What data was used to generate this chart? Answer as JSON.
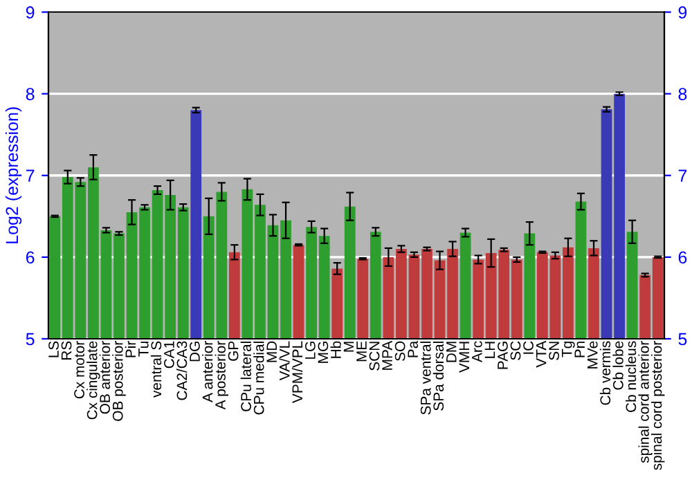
{
  "chart_data": {
    "type": "bar",
    "ylabel": "Log2 (expression)",
    "categories": [
      "LS",
      "RS",
      "Cx motor",
      "Cx cingulate",
      "OB anterior",
      "OB posterior",
      "Pir",
      "Tu",
      "ventral S",
      "CA1",
      "CA2/CA3",
      "DG",
      "A anterior",
      "A posterior",
      "GP",
      "CPu lateral",
      "CPu medial",
      "MD",
      "VA/VL",
      "VPM/VPL",
      "LG",
      "MG",
      "Hb",
      "M",
      "ME",
      "SCN",
      "MPA",
      "SO",
      "Pa",
      "SPa ventral",
      "SPa dorsal",
      "DM",
      "VMH",
      "Arc",
      "LH",
      "PAG",
      "SC",
      "IC",
      "VTA",
      "SN",
      "Tg",
      "Pn",
      "MVe",
      "Cb vermis",
      "Cb lobe",
      "Cb nucleus",
      "spinal cord anterior",
      "spinal cord posterior"
    ],
    "values": [
      6.5,
      6.98,
      6.92,
      7.1,
      6.33,
      6.29,
      6.55,
      6.61,
      6.82,
      6.76,
      6.61,
      7.8,
      6.5,
      6.8,
      6.06,
      6.83,
      6.64,
      6.39,
      6.45,
      6.15,
      6.37,
      6.26,
      5.86,
      6.62,
      5.98,
      6.31,
      6.0,
      6.1,
      6.03,
      6.1,
      5.96,
      6.1,
      6.3,
      5.97,
      6.05,
      6.09,
      5.97,
      6.29,
      6.06,
      6.02,
      6.12,
      6.68,
      6.11,
      7.81,
      8.0,
      6.31,
      5.78,
      6.0
    ],
    "errors": [
      0.01,
      0.08,
      0.05,
      0.15,
      0.03,
      0.02,
      0.15,
      0.03,
      0.05,
      0.18,
      0.04,
      0.03,
      0.22,
      0.11,
      0.09,
      0.13,
      0.13,
      0.13,
      0.22,
      0.01,
      0.07,
      0.09,
      0.07,
      0.17,
      0.01,
      0.05,
      0.11,
      0.04,
      0.03,
      0.02,
      0.11,
      0.09,
      0.05,
      0.05,
      0.17,
      0.02,
      0.03,
      0.14,
      0.01,
      0.04,
      0.11,
      0.1,
      0.09,
      0.03,
      0.02,
      0.14,
      0.02,
      0.01
    ],
    "colors": [
      "#2e9e2e",
      "#2e9e2e",
      "#2e9e2e",
      "#2e9e2e",
      "#2e9e2e",
      "#2e9e2e",
      "#2e9e2e",
      "#2e9e2e",
      "#2e9e2e",
      "#2e9e2e",
      "#2e9e2e",
      "#3a3ab8",
      "#2e9e2e",
      "#2e9e2e",
      "#c03c3c",
      "#2e9e2e",
      "#2e9e2e",
      "#2e9e2e",
      "#2e9e2e",
      "#c03c3c",
      "#2e9e2e",
      "#2e9e2e",
      "#c03c3c",
      "#2e9e2e",
      "#c03c3c",
      "#2e9e2e",
      "#c03c3c",
      "#c03c3c",
      "#c03c3c",
      "#c03c3c",
      "#c03c3c",
      "#c03c3c",
      "#2e9e2e",
      "#c03c3c",
      "#c03c3c",
      "#c03c3c",
      "#c03c3c",
      "#2e9e2e",
      "#c03c3c",
      "#c03c3c",
      "#c03c3c",
      "#2e9e2e",
      "#c03c3c",
      "#3a3ab8",
      "#3a3ab8",
      "#2e9e2e",
      "#c03c3c",
      "#c03c3c"
    ],
    "ylim": [
      5,
      9
    ],
    "yticks": [
      5,
      6,
      7,
      8,
      9
    ],
    "y2lim": [
      5,
      9
    ],
    "y2ticks": [
      5,
      6,
      7,
      8,
      9
    ],
    "grid": "y"
  }
}
